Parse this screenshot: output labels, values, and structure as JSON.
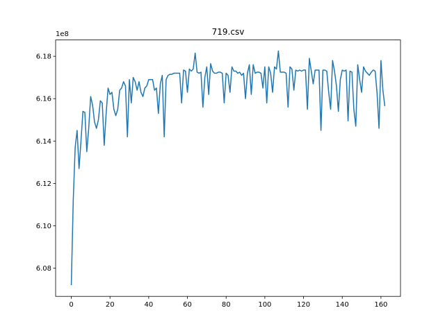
{
  "chart_data": {
    "type": "line",
    "title": "719.csv",
    "offset_text": "1e8",
    "x": [
      0,
      1,
      2,
      3,
      4,
      5,
      6,
      7,
      8,
      9,
      10,
      11,
      12,
      13,
      14,
      15,
      16,
      17,
      18,
      19,
      20,
      21,
      22,
      23,
      24,
      25,
      26,
      27,
      28,
      29,
      30,
      31,
      32,
      33,
      34,
      35,
      36,
      37,
      38,
      39,
      40,
      41,
      42,
      43,
      44,
      45,
      46,
      47,
      48,
      49,
      50,
      51,
      52,
      53,
      54,
      55,
      56,
      57,
      58,
      59,
      60,
      61,
      62,
      63,
      64,
      65,
      66,
      67,
      68,
      69,
      70,
      71,
      72,
      73,
      74,
      75,
      76,
      77,
      78,
      79,
      80,
      81,
      82,
      83,
      84,
      85,
      86,
      87,
      88,
      89,
      90,
      91,
      92,
      93,
      94,
      95,
      96,
      97,
      98,
      99,
      100,
      101,
      102,
      103,
      104,
      105,
      106,
      107,
      108,
      109,
      110,
      111,
      112,
      113,
      114,
      115,
      116,
      117,
      118,
      119,
      120,
      121,
      122,
      123,
      124,
      125,
      126,
      127,
      128,
      129,
      130,
      131,
      132,
      133,
      134,
      135,
      136,
      137,
      138,
      139,
      140,
      141,
      142,
      143,
      144,
      145,
      146,
      147,
      148,
      149,
      150,
      151,
      152,
      153,
      154,
      155,
      156,
      157,
      158,
      159,
      160,
      161,
      162
    ],
    "series": [
      {
        "name": "719.csv",
        "color": "#1f77b4",
        "values": [
          6.072,
          6.112,
          6.137,
          6.145,
          6.127,
          6.14,
          6.154,
          6.1535,
          6.135,
          6.146,
          6.161,
          6.157,
          6.149,
          6.146,
          6.15,
          6.159,
          6.158,
          6.138,
          6.153,
          6.165,
          6.162,
          6.163,
          6.155,
          6.152,
          6.155,
          6.164,
          6.165,
          6.168,
          6.166,
          6.142,
          6.169,
          6.158,
          6.17,
          6.168,
          6.164,
          6.168,
          6.163,
          6.161,
          6.165,
          6.166,
          6.169,
          6.169,
          6.169,
          6.164,
          6.165,
          6.153,
          6.167,
          6.171,
          6.142,
          6.169,
          6.171,
          6.1715,
          6.1715,
          6.172,
          6.172,
          6.172,
          6.172,
          6.158,
          6.1735,
          6.173,
          6.163,
          6.174,
          6.173,
          6.174,
          6.1815,
          6.1725,
          6.172,
          6.1725,
          6.156,
          6.17,
          6.175,
          6.162,
          6.1765,
          6.173,
          6.172,
          6.172,
          6.1725,
          6.1725,
          6.172,
          6.158,
          6.172,
          6.171,
          6.163,
          6.175,
          6.173,
          6.173,
          6.172,
          6.1725,
          6.171,
          6.172,
          6.16,
          6.172,
          6.176,
          6.162,
          6.176,
          6.172,
          6.1725,
          6.1725,
          6.172,
          6.165,
          6.175,
          6.158,
          6.175,
          6.172,
          6.163,
          6.175,
          6.174,
          6.1825,
          6.1725,
          6.1725,
          6.1725,
          6.172,
          6.156,
          6.175,
          6.174,
          6.164,
          6.1735,
          6.173,
          6.1735,
          6.173,
          6.1735,
          6.1735,
          6.155,
          6.179,
          6.173,
          6.167,
          6.1735,
          6.1735,
          6.1735,
          6.145,
          6.1735,
          6.1735,
          6.173,
          6.163,
          6.155,
          6.178,
          6.173,
          6.166,
          6.154,
          6.169,
          6.1735,
          6.173,
          6.1735,
          6.1495,
          6.173,
          6.1725,
          6.155,
          6.147,
          6.176,
          6.169,
          6.163,
          6.175,
          6.173,
          6.172,
          6.171,
          6.1725,
          6.1735,
          6.173,
          6.1625,
          6.146,
          6.178,
          6.164,
          6.1565
        ]
      }
    ],
    "xlim": [
      -8.1,
      170.1
    ],
    "xticks": [
      0,
      20,
      40,
      60,
      80,
      100,
      120,
      140,
      160
    ],
    "ylim": [
      6.0667,
      6.1877
    ],
    "yticks": [
      {
        "value": 6.08,
        "label": "6.08"
      },
      {
        "value": 6.1,
        "label": "6.10"
      },
      {
        "value": 6.12,
        "label": "6.12"
      },
      {
        "value": 6.14,
        "label": "6.14"
      },
      {
        "value": 6.16,
        "label": "6.16"
      },
      {
        "value": 6.18,
        "label": "6.18"
      }
    ],
    "grid": false
  }
}
